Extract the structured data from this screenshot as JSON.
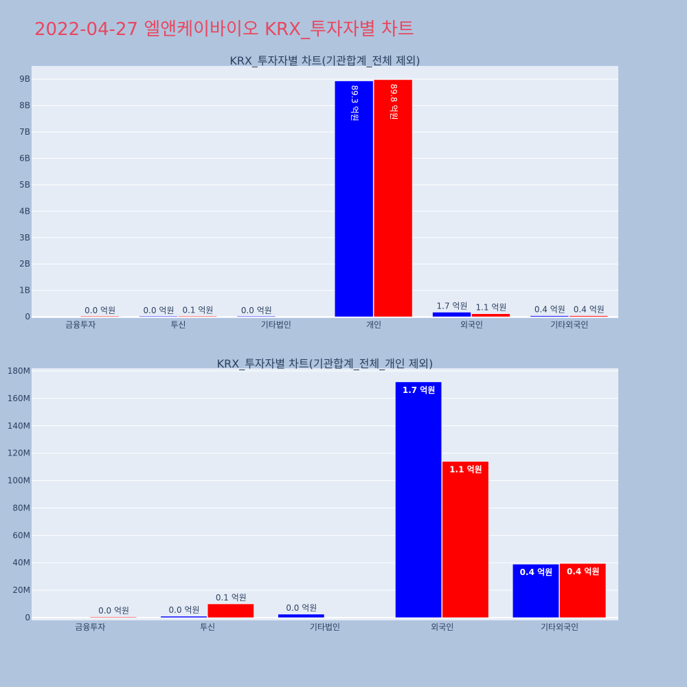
{
  "title": "2022-04-27 엘앤케이바이오 KRX_투자자별 차트",
  "colors": {
    "series_a": "#0000ff",
    "series_b": "#ff0000",
    "page_bg": "#b0c4de",
    "plot_bg": "#e5ecf6",
    "title": "#e8475f"
  },
  "chart_data": [
    {
      "type": "bar",
      "title": "KRX_투자자별 차트(기관합계_전체 제외)",
      "categories": [
        "금융투자",
        "투신",
        "기타법인",
        "개인",
        "외국인",
        "기타외국인"
      ],
      "yticks": [
        {
          "v": 0,
          "t": "0"
        },
        {
          "v": 1000000000,
          "t": "1B"
        },
        {
          "v": 2000000000,
          "t": "2B"
        },
        {
          "v": 3000000000,
          "t": "3B"
        },
        {
          "v": 4000000000,
          "t": "4B"
        },
        {
          "v": 5000000000,
          "t": "5B"
        },
        {
          "v": 6000000000,
          "t": "6B"
        },
        {
          "v": 7000000000,
          "t": "7B"
        },
        {
          "v": 8000000000,
          "t": "8B"
        },
        {
          "v": 9000000000,
          "t": "9B"
        }
      ],
      "ylim": [
        -50000000,
        9500000000
      ],
      "series": [
        {
          "values": [
            null,
            1000000,
            2500000,
            8930000000,
            172000000,
            39000000
          ],
          "labels": [
            "",
            "0.0 억원",
            "0.0 억원",
            "89.3 억원",
            "1.7 억원",
            "0.4 억원"
          ]
        },
        {
          "values": [
            500000,
            10000000,
            null,
            8980000000,
            114000000,
            39500000
          ],
          "labels": [
            "0.0 억원",
            "0.1 억원",
            "",
            "89.8 억원",
            "1.1 억원",
            "0.4 억원"
          ]
        }
      ]
    },
    {
      "type": "bar",
      "title": "KRX_투자자별 차트(기관합계_전체_개인 제외)",
      "categories": [
        "금융투자",
        "투신",
        "기타법인",
        "외국인",
        "기타외국인"
      ],
      "yticks": [
        {
          "v": 0,
          "t": "0"
        },
        {
          "v": 20000000,
          "t": "20M"
        },
        {
          "v": 40000000,
          "t": "40M"
        },
        {
          "v": 60000000,
          "t": "60M"
        },
        {
          "v": 80000000,
          "t": "80M"
        },
        {
          "v": 100000000,
          "t": "100M"
        },
        {
          "v": 120000000,
          "t": "120M"
        },
        {
          "v": 140000000,
          "t": "140M"
        },
        {
          "v": 160000000,
          "t": "160M"
        },
        {
          "v": 180000000,
          "t": "180M"
        }
      ],
      "ylim": [
        -2000000,
        182000000
      ],
      "series": [
        {
          "values": [
            null,
            1000000,
            2500000,
            172000000,
            39000000
          ],
          "labels": [
            "",
            "0.0 억원",
            "0.0 억원",
            "1.7 억원",
            "0.4 억원"
          ]
        },
        {
          "values": [
            500000,
            10000000,
            null,
            114000000,
            39500000
          ],
          "labels": [
            "0.0 억원",
            "0.1 억원",
            "",
            "1.1 억원",
            "0.4 억원"
          ]
        }
      ]
    }
  ]
}
